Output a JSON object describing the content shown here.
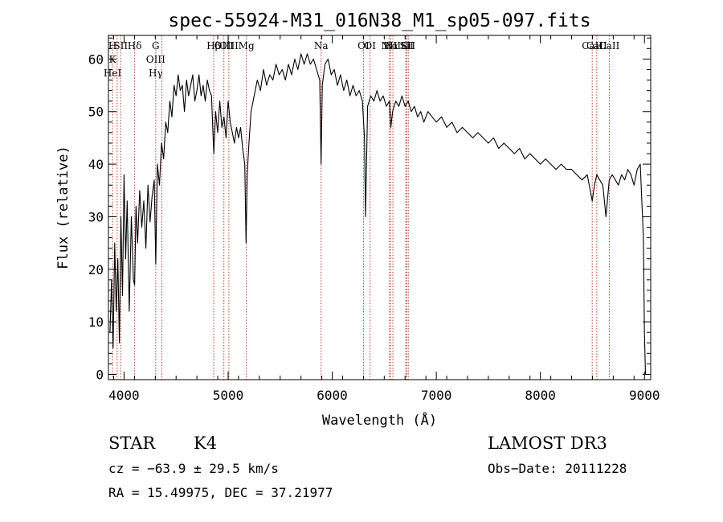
{
  "chart_data": {
    "type": "line",
    "title": "spec-55924-M31_016N38_M1_sp05-097.fits",
    "xlabel": "Wavelength (Å)",
    "ylabel": "Flux (relative)",
    "xlim": [
      3850,
      9060
    ],
    "ylim": [
      -1,
      64.5
    ],
    "xticks": [
      4000,
      5000,
      6000,
      7000,
      8000,
      9000
    ],
    "yticks": [
      0,
      10,
      20,
      30,
      40,
      50,
      60
    ],
    "series": [
      {
        "name": "spectrum",
        "color": "#000000",
        "x": [
          3865,
          3880,
          3895,
          3910,
          3925,
          3940,
          3955,
          3970,
          3985,
          4000,
          4015,
          4030,
          4050,
          4070,
          4090,
          4102,
          4115,
          4130,
          4150,
          4170,
          4190,
          4210,
          4230,
          4250,
          4270,
          4290,
          4305,
          4320,
          4340,
          4360,
          4380,
          4400,
          4420,
          4440,
          4460,
          4480,
          4500,
          4520,
          4540,
          4560,
          4580,
          4600,
          4620,
          4640,
          4660,
          4680,
          4700,
          4720,
          4740,
          4760,
          4780,
          4800,
          4820,
          4840,
          4862,
          4880,
          4900,
          4920,
          4940,
          4960,
          4980,
          5000,
          5020,
          5040,
          5060,
          5080,
          5100,
          5120,
          5140,
          5160,
          5172,
          5183,
          5200,
          5220,
          5250,
          5280,
          5310,
          5340,
          5370,
          5400,
          5430,
          5460,
          5490,
          5520,
          5550,
          5580,
          5610,
          5640,
          5670,
          5700,
          5730,
          5760,
          5790,
          5820,
          5850,
          5880,
          5893,
          5905,
          5930,
          5960,
          5990,
          6020,
          6050,
          6080,
          6110,
          6140,
          6170,
          6200,
          6230,
          6260,
          6290,
          6310,
          6320,
          6340,
          6370,
          6400,
          6430,
          6460,
          6490,
          6520,
          6550,
          6563,
          6580,
          6610,
          6640,
          6670,
          6700,
          6730,
          6760,
          6790,
          6820,
          6850,
          6880,
          6920,
          6960,
          7000,
          7050,
          7100,
          7150,
          7200,
          7250,
          7300,
          7350,
          7400,
          7450,
          7500,
          7550,
          7600,
          7650,
          7700,
          7750,
          7800,
          7850,
          7900,
          7950,
          8000,
          8050,
          8100,
          8150,
          8200,
          8250,
          8300,
          8350,
          8400,
          8450,
          8498,
          8520,
          8542,
          8570,
          8600,
          8630,
          8662,
          8690,
          8720,
          8750,
          8780,
          8810,
          8840,
          8870,
          8900,
          8930,
          8960,
          8990,
          9000,
          9010
        ],
        "y": [
          8,
          18,
          5,
          25,
          12,
          22,
          6,
          30,
          15,
          38,
          22,
          33,
          12,
          30,
          18,
          17,
          32,
          25,
          35,
          28,
          33,
          24,
          36,
          29,
          34,
          37,
          21,
          40,
          36,
          44,
          41,
          48,
          46,
          52,
          49,
          55,
          53,
          57,
          54,
          55,
          50,
          56,
          53,
          55,
          57,
          52,
          54,
          57,
          53,
          55,
          52,
          56,
          54,
          53,
          42,
          50,
          46,
          52,
          47,
          49,
          45,
          52,
          48,
          46,
          44,
          47,
          45,
          47,
          43,
          40,
          25,
          38,
          44,
          50,
          53,
          56,
          54,
          58,
          55,
          57,
          56,
          59,
          57,
          58,
          56,
          59,
          57,
          60,
          58,
          61,
          59,
          61,
          59,
          60,
          58,
          56,
          40,
          55,
          59,
          60,
          57,
          58,
          55,
          57,
          54,
          56,
          53,
          55,
          53,
          54,
          52,
          45,
          30,
          51,
          53,
          52,
          54,
          52,
          53,
          51,
          52,
          47,
          50,
          52,
          51,
          53,
          51,
          52,
          50,
          51,
          49,
          50,
          48,
          50,
          49,
          48,
          49,
          47,
          48,
          46,
          47,
          46,
          45,
          46,
          45,
          44,
          45,
          43,
          44,
          43,
          42,
          43,
          41,
          42,
          41,
          40,
          41,
          40,
          39,
          40,
          39,
          39,
          38,
          37,
          38,
          33,
          36,
          38,
          37,
          36,
          30,
          37,
          38,
          37,
          36,
          38,
          37,
          39,
          38,
          36,
          39,
          40,
          26,
          8,
          0
        ]
      }
    ],
    "lines": [
      {
        "x": 3889,
        "labels": [
          "H",
          "K",
          "HeI"
        ]
      },
      {
        "x": 3933,
        "labels": []
      },
      {
        "x": 3968,
        "labels": [
          "SII"
        ]
      },
      {
        "x": 4102,
        "labels": [
          "Hδ"
        ]
      },
      {
        "x": 4304,
        "labels": [
          "G",
          "OIII",
          "Hγ"
        ]
      },
      {
        "x": 4363,
        "labels": []
      },
      {
        "x": 4861,
        "labels": [
          "Hβ"
        ]
      },
      {
        "x": 4959,
        "labels": [
          "OIII"
        ]
      },
      {
        "x": 5007,
        "labels": [
          "OIII"
        ]
      },
      {
        "x": 5175,
        "labels": [
          "Mg"
        ]
      },
      {
        "x": 5893,
        "labels": [
          "Na"
        ]
      },
      {
        "x": 6300,
        "labels": [
          "OI"
        ]
      },
      {
        "x": 6364,
        "labels": [
          "OI"
        ]
      },
      {
        "x": 6548,
        "labels": [
          "NII"
        ]
      },
      {
        "x": 6563,
        "labels": [
          "Hα"
        ]
      },
      {
        "x": 6583,
        "labels": [
          "NII"
        ]
      },
      {
        "x": 6707,
        "labels": [
          "Li"
        ]
      },
      {
        "x": 6716,
        "labels": [
          "SII"
        ]
      },
      {
        "x": 6731,
        "labels": [
          "SII"
        ]
      },
      {
        "x": 8498,
        "labels": [
          "CaII"
        ]
      },
      {
        "x": 8542,
        "labels": [
          "CaII"
        ]
      },
      {
        "x": 8662,
        "labels": [
          "CaII"
        ]
      }
    ]
  },
  "info": {
    "class": "STAR",
    "subclass": "K4",
    "survey": "LAMOST DR3",
    "cz": "cz = −63.9 ± 29.5 km/s",
    "obs_date": "Obs−Date: 20111228",
    "radec": "RA =  15.49975, DEC =  37.21977"
  }
}
